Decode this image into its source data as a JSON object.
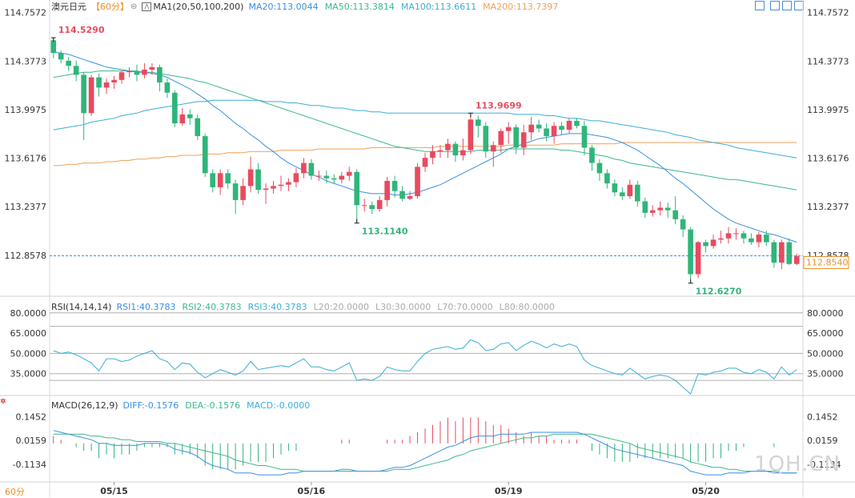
{
  "header": {
    "symbol": "澳元日元",
    "period_tag": "【60分】",
    "icon_refresh": "cycle-icon",
    "ma_label": "MA1(20,50,100,200)",
    "ma_values": [
      {
        "label": "MA20:113.0044",
        "color": "#3a8fe0"
      },
      {
        "label": "MA50:113.3814",
        "color": "#3cb88a"
      },
      {
        "label": "MA100:113.6611",
        "color": "#3aaed8"
      },
      {
        "label": "MA200:113.7397",
        "color": "#f0a05a"
      }
    ],
    "period_color": "#e8902a"
  },
  "toolbar_icons": [
    "zoom-icon",
    "layout-icon",
    "chart-type-icon",
    "export-icon"
  ],
  "price_axis": {
    "ticks": [
      "114.7572",
      "114.3773",
      "113.9975",
      "113.6176",
      "113.2377",
      "112.8578"
    ],
    "current_price": "112.8540",
    "current_level_label": "112.8578"
  },
  "annotations": {
    "high_1": "114.5290",
    "high_2": "113.9699",
    "low_1": "113.1140",
    "low_2": "112.6270"
  },
  "rsi": {
    "title": "RSI(14,14,14)",
    "items": [
      {
        "label": "RSI1:40.3783",
        "color": "#3a8fe0"
      },
      {
        "label": "RSI2:40.3783",
        "color": "#3cb88a"
      },
      {
        "label": "RSI3:40.3783",
        "color": "#3aaed8"
      },
      {
        "label": "L20:20.0000",
        "color": "#aaaaaa"
      },
      {
        "label": "L30:30.0000",
        "color": "#aaaaaa"
      },
      {
        "label": "L70:70.0000",
        "color": "#aaaaaa"
      },
      {
        "label": "L80:80.0000",
        "color": "#aaaaaa"
      }
    ],
    "ticks": [
      "80.0000",
      "65.0000",
      "50.0000",
      "35.0000"
    ]
  },
  "macd": {
    "title": "MACD(26,12,9)",
    "items": [
      {
        "label": "DIFF:-0.1576",
        "color": "#3a8fe0"
      },
      {
        "label": "DEA:-0.1576",
        "color": "#3cb88a"
      },
      {
        "label": "MACD:-0.0000",
        "color": "#3aaed8"
      }
    ],
    "ticks": [
      "0.1452",
      "0.0159",
      "-0.1134"
    ]
  },
  "time_axis": {
    "period_button": "60分",
    "labels": [
      "05/15",
      "05/16",
      "05/19",
      "05/20"
    ]
  },
  "watermark": "1QH.CN",
  "chart_data": {
    "type": "candlestick",
    "title": "澳元日元",
    "price_range": [
      112.55,
      114.78
    ],
    "candles": [
      [
        114.54,
        114.44,
        114.56,
        114.4
      ],
      [
        114.44,
        114.39,
        114.46,
        114.36
      ],
      [
        114.38,
        114.34,
        114.41,
        114.3
      ],
      [
        114.34,
        114.27,
        114.38,
        114.22
      ],
      [
        114.27,
        113.97,
        114.29,
        113.76
      ],
      [
        113.97,
        114.25,
        114.27,
        113.95
      ],
      [
        114.25,
        114.17,
        114.28,
        114.1
      ],
      [
        114.17,
        114.21,
        114.24,
        114.12
      ],
      [
        114.21,
        114.23,
        114.26,
        114.16
      ],
      [
        114.23,
        114.29,
        114.3,
        114.2
      ],
      [
        114.29,
        114.3,
        114.33,
        114.25
      ],
      [
        114.3,
        114.27,
        114.35,
        114.22
      ],
      [
        114.27,
        114.31,
        114.36,
        114.24
      ],
      [
        114.31,
        114.33,
        114.36,
        114.27
      ],
      [
        114.33,
        114.21,
        114.35,
        114.14
      ],
      [
        114.21,
        114.13,
        114.24,
        114.09
      ],
      [
        114.13,
        113.89,
        114.15,
        113.86
      ],
      [
        113.89,
        113.96,
        114.01,
        113.87
      ],
      [
        113.96,
        113.93,
        114.0,
        113.88
      ],
      [
        113.93,
        113.79,
        113.96,
        113.76
      ],
      [
        113.79,
        113.5,
        113.81,
        113.47
      ],
      [
        113.5,
        113.39,
        113.53,
        113.35
      ],
      [
        113.39,
        113.5,
        113.53,
        113.33
      ],
      [
        113.5,
        113.42,
        113.53,
        113.38
      ],
      [
        113.42,
        113.29,
        113.45,
        113.18
      ],
      [
        113.29,
        113.4,
        113.46,
        113.25
      ],
      [
        113.4,
        113.53,
        113.63,
        113.35
      ],
      [
        113.53,
        113.37,
        113.58,
        113.34
      ],
      [
        113.37,
        113.38,
        113.42,
        113.26
      ],
      [
        113.38,
        113.4,
        113.44,
        113.34
      ],
      [
        113.4,
        113.41,
        113.48,
        113.36
      ],
      [
        113.41,
        113.43,
        113.46,
        113.36
      ],
      [
        113.43,
        113.5,
        113.54,
        113.39
      ],
      [
        113.5,
        113.58,
        113.62,
        113.46
      ],
      [
        113.58,
        113.48,
        113.61,
        113.45
      ],
      [
        113.48,
        113.48,
        113.52,
        113.44
      ],
      [
        113.48,
        113.46,
        113.52,
        113.42
      ],
      [
        113.46,
        113.45,
        113.49,
        113.42
      ],
      [
        113.45,
        113.48,
        113.51,
        113.42
      ],
      [
        113.48,
        113.51,
        113.55,
        113.44
      ],
      [
        113.51,
        113.25,
        113.53,
        113.11
      ],
      [
        113.25,
        113.25,
        113.3,
        113.2
      ],
      [
        113.25,
        113.22,
        113.28,
        113.18
      ],
      [
        113.22,
        113.29,
        113.32,
        113.2
      ],
      [
        113.29,
        113.44,
        113.47,
        113.24
      ],
      [
        113.44,
        113.36,
        113.48,
        113.31
      ],
      [
        113.36,
        113.3,
        113.4,
        113.28
      ],
      [
        113.3,
        113.32,
        113.36,
        113.29
      ],
      [
        113.32,
        113.55,
        113.58,
        113.3
      ],
      [
        113.55,
        113.62,
        113.66,
        113.51
      ],
      [
        113.62,
        113.67,
        113.72,
        113.57
      ],
      [
        113.67,
        113.68,
        113.72,
        113.62
      ],
      [
        113.68,
        113.73,
        113.77,
        113.62
      ],
      [
        113.73,
        113.64,
        113.75,
        113.59
      ],
      [
        113.64,
        113.68,
        113.77,
        113.6
      ],
      [
        113.68,
        113.92,
        113.97,
        113.65
      ],
      [
        113.92,
        113.87,
        113.95,
        113.78
      ],
      [
        113.87,
        113.67,
        113.9,
        113.62
      ],
      [
        113.67,
        113.72,
        113.75,
        113.55
      ],
      [
        113.72,
        113.83,
        113.85,
        113.66
      ],
      [
        113.83,
        113.86,
        113.9,
        113.73
      ],
      [
        113.86,
        113.7,
        113.88,
        113.65
      ],
      [
        113.7,
        113.82,
        113.88,
        113.64
      ],
      [
        113.82,
        113.88,
        113.94,
        113.76
      ],
      [
        113.88,
        113.85,
        113.92,
        113.82
      ],
      [
        113.85,
        113.79,
        113.89,
        113.75
      ],
      [
        113.79,
        113.87,
        113.9,
        113.73
      ],
      [
        113.87,
        113.84,
        113.9,
        113.8
      ],
      [
        113.84,
        113.91,
        113.93,
        113.81
      ],
      [
        113.91,
        113.87,
        113.93,
        113.85
      ],
      [
        113.87,
        113.7,
        113.91,
        113.64
      ],
      [
        113.7,
        113.58,
        113.72,
        113.52
      ],
      [
        113.58,
        113.5,
        113.61,
        113.44
      ],
      [
        113.5,
        113.42,
        113.53,
        113.38
      ],
      [
        113.42,
        113.35,
        113.45,
        113.32
      ],
      [
        113.35,
        113.32,
        113.39,
        113.29
      ],
      [
        113.32,
        113.41,
        113.45,
        113.3
      ],
      [
        113.41,
        113.28,
        113.44,
        113.24
      ],
      [
        113.28,
        113.19,
        113.31,
        113.15
      ],
      [
        113.19,
        113.21,
        113.25,
        113.16
      ],
      [
        113.21,
        113.23,
        113.28,
        113.17
      ],
      [
        113.23,
        113.21,
        113.27,
        113.15
      ],
      [
        113.21,
        113.14,
        113.32,
        113.1
      ],
      [
        113.14,
        113.06,
        113.17,
        113.0
      ],
      [
        113.06,
        112.71,
        113.08,
        112.64
      ],
      [
        112.71,
        112.96,
        112.97,
        112.68
      ],
      [
        112.96,
        112.93,
        112.98,
        112.88
      ],
      [
        112.93,
        112.98,
        113.02,
        112.91
      ],
      [
        112.98,
        112.99,
        113.05,
        112.95
      ],
      [
        112.99,
        113.03,
        113.08,
        112.95
      ],
      [
        113.03,
        113.03,
        113.07,
        112.98
      ],
      [
        113.03,
        112.99,
        113.05,
        112.95
      ],
      [
        112.99,
        112.96,
        113.03,
        112.94
      ],
      [
        112.96,
        113.02,
        113.04,
        112.92
      ],
      [
        113.02,
        112.96,
        113.05,
        112.93
      ],
      [
        112.96,
        112.8,
        112.98,
        112.76
      ],
      [
        112.8,
        112.96,
        112.98,
        112.75
      ],
      [
        112.96,
        112.79,
        112.99,
        112.78
      ],
      [
        112.79,
        112.85,
        112.87,
        112.78
      ]
    ],
    "ma20": [
      114.45,
      114.44,
      114.43,
      114.41,
      114.39,
      114.37,
      114.35,
      114.33,
      114.32,
      114.31,
      114.3,
      114.29,
      114.29,
      114.28,
      114.27,
      114.25,
      114.22,
      114.19,
      114.16,
      114.12,
      114.08,
      114.03,
      113.99,
      113.94,
      113.89,
      113.85,
      113.8,
      113.76,
      113.71,
      113.67,
      113.62,
      113.58,
      113.55,
      113.52,
      113.49,
      113.47,
      113.44,
      113.42,
      113.4,
      113.38,
      113.36,
      113.35,
      113.34,
      113.34,
      113.34,
      113.33,
      113.33,
      113.34,
      113.35,
      113.37,
      113.39,
      113.41,
      113.44,
      113.47,
      113.5,
      113.53,
      113.56,
      113.59,
      113.62,
      113.65,
      113.69,
      113.71,
      113.73,
      113.75,
      113.77,
      113.78,
      113.79,
      113.8,
      113.81,
      113.81,
      113.81,
      113.8,
      113.79,
      113.78,
      113.76,
      113.74,
      113.71,
      113.68,
      113.64,
      113.6,
      113.56,
      113.51,
      113.46,
      113.42,
      113.37,
      113.32,
      113.27,
      113.22,
      113.18,
      113.14,
      113.11,
      113.09,
      113.07,
      113.05,
      113.03,
      113.02,
      113.0,
      112.98,
      112.96
    ],
    "ma50": [
      114.25,
      114.26,
      114.27,
      114.28,
      114.29,
      114.29,
      114.3,
      114.3,
      114.3,
      114.3,
      114.3,
      114.3,
      114.29,
      114.29,
      114.28,
      114.27,
      114.26,
      114.25,
      114.24,
      114.22,
      114.21,
      114.19,
      114.17,
      114.15,
      114.13,
      114.11,
      114.09,
      114.07,
      114.05,
      114.03,
      114.01,
      113.99,
      113.97,
      113.95,
      113.93,
      113.91,
      113.89,
      113.87,
      113.85,
      113.83,
      113.81,
      113.79,
      113.77,
      113.75,
      113.73,
      113.71,
      113.7,
      113.69,
      113.68,
      113.67,
      113.67,
      113.67,
      113.67,
      113.67,
      113.67,
      113.67,
      113.68,
      113.68,
      113.68,
      113.68,
      113.69,
      113.69,
      113.69,
      113.69,
      113.69,
      113.69,
      113.69,
      113.68,
      113.68,
      113.67,
      113.66,
      113.65,
      113.64,
      113.63,
      113.61,
      113.6,
      113.58,
      113.57,
      113.56,
      113.55,
      113.54,
      113.53,
      113.52,
      113.51,
      113.5,
      113.49,
      113.48,
      113.47,
      113.46,
      113.45,
      113.45,
      113.44,
      113.43,
      113.42,
      113.41,
      113.4,
      113.39,
      113.38,
      113.37
    ],
    "ma100": [
      113.84,
      113.85,
      113.86,
      113.87,
      113.88,
      113.9,
      113.91,
      113.92,
      113.93,
      113.95,
      113.96,
      113.97,
      113.99,
      114.0,
      114.01,
      114.02,
      114.03,
      114.04,
      114.05,
      114.06,
      114.06,
      114.07,
      114.07,
      114.07,
      114.07,
      114.07,
      114.07,
      114.07,
      114.06,
      114.06,
      114.06,
      114.05,
      114.05,
      114.04,
      114.03,
      114.03,
      114.02,
      114.01,
      114.01,
      114.0,
      113.99,
      113.99,
      113.98,
      113.98,
      113.97,
      113.97,
      113.97,
      113.97,
      113.97,
      113.97,
      113.97,
      113.97,
      113.97,
      113.97,
      113.97,
      113.97,
      113.97,
      113.97,
      113.97,
      113.97,
      113.97,
      113.96,
      113.96,
      113.96,
      113.96,
      113.95,
      113.95,
      113.94,
      113.93,
      113.93,
      113.92,
      113.91,
      113.91,
      113.9,
      113.89,
      113.88,
      113.87,
      113.86,
      113.85,
      113.84,
      113.83,
      113.82,
      113.8,
      113.79,
      113.78,
      113.76,
      113.75,
      113.74,
      113.73,
      113.72,
      113.7,
      113.69,
      113.68,
      113.67,
      113.66,
      113.65,
      113.64,
      113.63,
      113.62
    ],
    "ma200": [
      113.56,
      113.56,
      113.57,
      113.57,
      113.58,
      113.58,
      113.58,
      113.59,
      113.59,
      113.6,
      113.6,
      113.61,
      113.61,
      113.62,
      113.62,
      113.63,
      113.63,
      113.64,
      113.64,
      113.64,
      113.65,
      113.65,
      113.65,
      113.66,
      113.66,
      113.66,
      113.67,
      113.67,
      113.67,
      113.67,
      113.68,
      113.68,
      113.68,
      113.68,
      113.68,
      113.69,
      113.69,
      113.69,
      113.69,
      113.69,
      113.69,
      113.69,
      113.7,
      113.7,
      113.7,
      113.7,
      113.7,
      113.7,
      113.7,
      113.7,
      113.7,
      113.71,
      113.71,
      113.71,
      113.71,
      113.71,
      113.71,
      113.71,
      113.71,
      113.71,
      113.72,
      113.72,
      113.72,
      113.72,
      113.72,
      113.72,
      113.72,
      113.73,
      113.73,
      113.73,
      113.73,
      113.73,
      113.73,
      113.73,
      113.73,
      113.74,
      113.74,
      113.74,
      113.74,
      113.74,
      113.74,
      113.74,
      113.74,
      113.74,
      113.74,
      113.74,
      113.74,
      113.74,
      113.74,
      113.74,
      113.74,
      113.74,
      113.74,
      113.74,
      113.74,
      113.74,
      113.74,
      113.74,
      113.74
    ],
    "rsi_range": [
      20,
      84
    ],
    "rsi_levels": [
      80,
      70,
      50,
      35,
      30
    ],
    "rsi": [
      52,
      50,
      51,
      49,
      46,
      43,
      37,
      46,
      46,
      44,
      45,
      48,
      50,
      52,
      46,
      44,
      38,
      43,
      42,
      36,
      32,
      35,
      38,
      36,
      34,
      37,
      44,
      38,
      39,
      40,
      41,
      40,
      43,
      46,
      40,
      40,
      38,
      37,
      40,
      43,
      30,
      31,
      30,
      33,
      40,
      38,
      37,
      37,
      44,
      50,
      53,
      54,
      55,
      53,
      54,
      60,
      58,
      52,
      53,
      57,
      58,
      52,
      56,
      59,
      57,
      54,
      57,
      55,
      57,
      55,
      45,
      41,
      39,
      37,
      35,
      34,
      39,
      35,
      31,
      33,
      34,
      33,
      30,
      25,
      20,
      35,
      34,
      36,
      37,
      39,
      39,
      36,
      35,
      38,
      36,
      31,
      40,
      34,
      38
    ],
    "macd_range": [
      -0.2,
      0.19
    ],
    "diff": [
      0.07,
      0.06,
      0.05,
      0.04,
      0.03,
      0.02,
      0.0,
      0.0,
      -0.01,
      -0.01,
      -0.01,
      -0.01,
      0.0,
      0.0,
      0.0,
      -0.01,
      -0.03,
      -0.04,
      -0.05,
      -0.07,
      -0.1,
      -0.12,
      -0.13,
      -0.14,
      -0.16,
      -0.16,
      -0.16,
      -0.17,
      -0.17,
      -0.17,
      -0.17,
      -0.16,
      -0.16,
      -0.15,
      -0.15,
      -0.15,
      -0.15,
      -0.15,
      -0.14,
      -0.14,
      -0.15,
      -0.15,
      -0.15,
      -0.15,
      -0.14,
      -0.13,
      -0.13,
      -0.12,
      -0.1,
      -0.08,
      -0.06,
      -0.04,
      -0.02,
      -0.01,
      0.01,
      0.03,
      0.04,
      0.04,
      0.04,
      0.05,
      0.05,
      0.05,
      0.05,
      0.06,
      0.06,
      0.06,
      0.06,
      0.06,
      0.06,
      0.06,
      0.05,
      0.03,
      0.01,
      -0.01,
      -0.03,
      -0.04,
      -0.05,
      -0.06,
      -0.07,
      -0.08,
      -0.09,
      -0.1,
      -0.11,
      -0.12,
      -0.15,
      -0.16,
      -0.17,
      -0.17,
      -0.17,
      -0.16,
      -0.16,
      -0.16,
      -0.15,
      -0.15,
      -0.15,
      -0.16,
      -0.16,
      -0.16,
      -0.16
    ],
    "dea": [
      0.05,
      0.05,
      0.05,
      0.05,
      0.05,
      0.04,
      0.04,
      0.03,
      0.03,
      0.02,
      0.02,
      0.01,
      0.01,
      0.01,
      0.01,
      0.0,
      0.0,
      -0.01,
      -0.02,
      -0.03,
      -0.04,
      -0.05,
      -0.06,
      -0.07,
      -0.09,
      -0.1,
      -0.11,
      -0.12,
      -0.12,
      -0.13,
      -0.14,
      -0.14,
      -0.14,
      -0.15,
      -0.15,
      -0.15,
      -0.15,
      -0.15,
      -0.15,
      -0.15,
      -0.15,
      -0.15,
      -0.15,
      -0.15,
      -0.15,
      -0.14,
      -0.14,
      -0.14,
      -0.13,
      -0.12,
      -0.11,
      -0.1,
      -0.09,
      -0.07,
      -0.06,
      -0.04,
      -0.03,
      -0.02,
      -0.01,
      0.0,
      0.01,
      0.02,
      0.03,
      0.03,
      0.04,
      0.04,
      0.05,
      0.05,
      0.05,
      0.05,
      0.05,
      0.05,
      0.04,
      0.03,
      0.02,
      0.01,
      0.0,
      -0.02,
      -0.03,
      -0.04,
      -0.05,
      -0.06,
      -0.07,
      -0.08,
      -0.1,
      -0.11,
      -0.12,
      -0.13,
      -0.13,
      -0.14,
      -0.14,
      -0.15,
      -0.15,
      -0.15,
      -0.15,
      -0.15,
      -0.16,
      -0.16,
      -0.16
    ]
  }
}
